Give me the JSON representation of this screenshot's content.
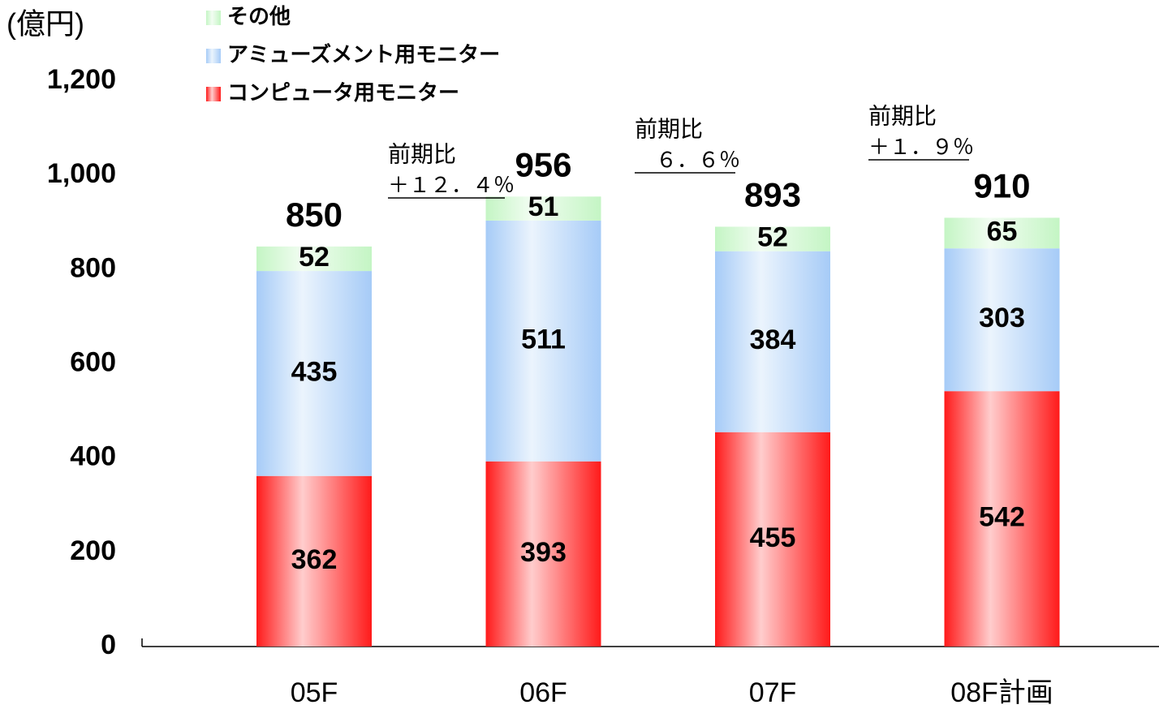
{
  "chart_data": {
    "type": "stacked_bar",
    "y_axis_label": "(億円)",
    "categories": [
      "05F",
      "06F",
      "07F",
      "08F計画"
    ],
    "series": [
      {
        "name": "コンピュータ用モニター",
        "color": "#ff1a1a",
        "values": [
          362,
          393,
          455,
          542
        ]
      },
      {
        "name": "アミューズメント用モニター",
        "color": "#a6cbf7",
        "values": [
          435,
          511,
          384,
          303
        ]
      },
      {
        "name": "その他",
        "color": "#c4f5c4",
        "values": [
          52,
          51,
          52,
          65
        ]
      }
    ],
    "totals": [
      850,
      956,
      893,
      910
    ],
    "annotations": [
      {
        "title": "前期比",
        "value": "＋１２．４％"
      },
      {
        "title": "前期比",
        "value": "　６．６％"
      },
      {
        "title": "前期比",
        "value": "＋１．９％"
      }
    ],
    "ylim": [
      0,
      1200
    ],
    "yticks": [
      0,
      200,
      400,
      600,
      800,
      {
        "value": 1000,
        "label": "1,000"
      },
      {
        "value": 1200,
        "label": "1,200"
      }
    ]
  }
}
